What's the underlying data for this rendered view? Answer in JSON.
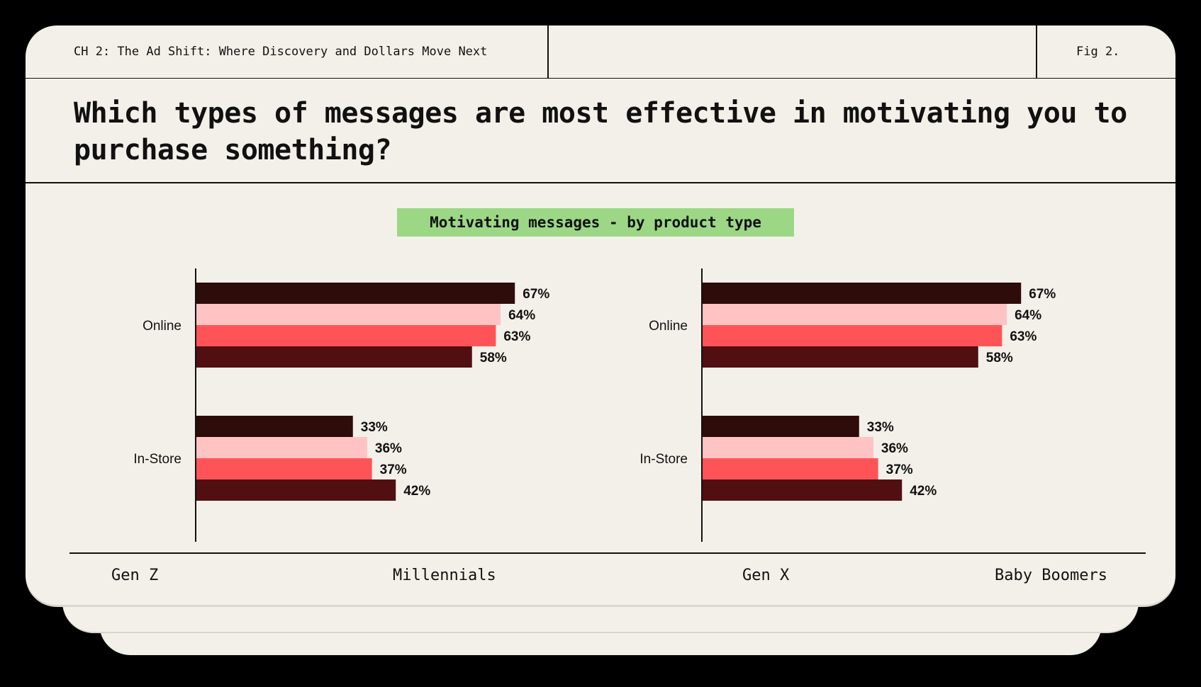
{
  "header": {
    "chapter": "CH 2: The Ad Shift: Where Discovery and Dollars Move Next",
    "figure": "Fig 2."
  },
  "question": "Which types of messages are most effective in motivating you to purchase something?",
  "subtitle": "Motivating messages - by product type",
  "colors": {
    "background": "#000000",
    "card": "#f3f0e9",
    "highlight": "#9cd786",
    "series": [
      "#2d0c0a",
      "#ffc3c3",
      "#ff5457",
      "#520f12"
    ]
  },
  "chart_data": [
    {
      "type": "bar",
      "orientation": "horizontal",
      "categories": [
        "Online",
        "In-Store"
      ],
      "series": [
        {
          "name": "Gen Z",
          "values": [
            67,
            33
          ]
        },
        {
          "name": "Millennials",
          "values": [
            64,
            36
          ]
        },
        {
          "name": "Gen X",
          "values": [
            63,
            37
          ]
        },
        {
          "name": "Baby Boomers",
          "values": [
            58,
            42
          ]
        }
      ],
      "value_suffix": "%",
      "xlim": [
        0,
        100
      ],
      "grid": false
    },
    {
      "type": "bar",
      "orientation": "horizontal",
      "categories": [
        "Online",
        "In-Store"
      ],
      "series": [
        {
          "name": "Gen Z",
          "values": [
            67,
            33
          ]
        },
        {
          "name": "Millennials",
          "values": [
            64,
            36
          ]
        },
        {
          "name": "Gen X",
          "values": [
            63,
            37
          ]
        },
        {
          "name": "Baby Boomers",
          "values": [
            58,
            42
          ]
        }
      ],
      "value_suffix": "%",
      "xlim": [
        0,
        100
      ],
      "grid": false
    }
  ],
  "legend": [
    "Gen Z",
    "Millennials",
    "Gen X",
    "Baby Boomers"
  ]
}
